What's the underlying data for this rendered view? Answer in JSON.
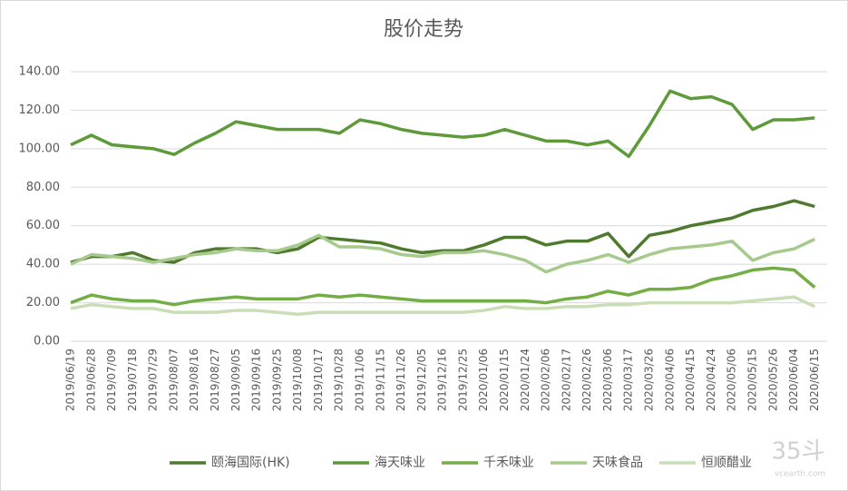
{
  "chart_data": {
    "type": "line",
    "title": "股价走势",
    "categories": [
      "2019/06/19",
      "2019/06/28",
      "2019/07/09",
      "2019/07/18",
      "2019/07/29",
      "2019/08/07",
      "2019/08/16",
      "2019/08/27",
      "2019/09/05",
      "2019/09/16",
      "2019/09/25",
      "2019/10/08",
      "2019/10/17",
      "2019/10/28",
      "2019/11/06",
      "2019/11/15",
      "2019/11/26",
      "2019/12/05",
      "2019/12/16",
      "2019/12/25",
      "2020/01/06",
      "2020/01/15",
      "2020/01/24",
      "2020/02/06",
      "2020/02/17",
      "2020/02/26",
      "2020/03/06",
      "2020/03/17",
      "2020/03/26",
      "2020/04/06",
      "2020/04/15",
      "2020/04/24",
      "2020/05/06",
      "2020/05/15",
      "2020/05/26",
      "2020/06/04",
      "2020/06/15"
    ],
    "series": [
      {
        "name": "颐海国际(HK)",
        "color": "#4e7a2e",
        "values": [
          41,
          44,
          44,
          46,
          42,
          41,
          46,
          48,
          48,
          48,
          46,
          48,
          54,
          53,
          52,
          51,
          48,
          46,
          47,
          47,
          50,
          54,
          54,
          50,
          52,
          52,
          56,
          44,
          55,
          57,
          60,
          62,
          64,
          68,
          70,
          73,
          70
        ]
      },
      {
        "name": "海天味业",
        "color": "#5e9a3a",
        "values": [
          102,
          107,
          102,
          101,
          100,
          97,
          103,
          108,
          114,
          112,
          110,
          110,
          110,
          108,
          115,
          113,
          110,
          108,
          107,
          106,
          107,
          110,
          107,
          104,
          104,
          102,
          104,
          96,
          112,
          130,
          126,
          127,
          123,
          110,
          115,
          115,
          116
        ]
      },
      {
        "name": "千禾味业",
        "color": "#72ad45",
        "values": [
          20,
          24,
          22,
          21,
          21,
          19,
          21,
          22,
          23,
          22,
          22,
          22,
          24,
          23,
          24,
          23,
          22,
          21,
          21,
          21,
          21,
          21,
          21,
          20,
          22,
          23,
          26,
          24,
          27,
          27,
          28,
          32,
          34,
          37,
          38,
          37,
          28
        ]
      },
      {
        "name": "天味食品",
        "color": "#a6c98c",
        "values": [
          40,
          45,
          44,
          43,
          41,
          43,
          45,
          46,
          48,
          47,
          47,
          50,
          55,
          49,
          49,
          48,
          45,
          44,
          46,
          46,
          47,
          45,
          42,
          36,
          40,
          42,
          45,
          41,
          45,
          48,
          49,
          50,
          52,
          42,
          46,
          48,
          53
        ]
      },
      {
        "name": "恒顺醋业",
        "color": "#c9ddb7",
        "values": [
          17,
          19,
          18,
          17,
          17,
          15,
          15,
          15,
          16,
          16,
          15,
          14,
          15,
          15,
          15,
          15,
          15,
          15,
          15,
          15,
          16,
          18,
          17,
          17,
          18,
          18,
          19,
          19,
          20,
          20,
          20,
          20,
          20,
          21,
          22,
          23,
          18
        ]
      }
    ],
    "ylim": [
      0,
      140
    ],
    "yticks": [
      {
        "value": 0,
        "label": "0.00"
      },
      {
        "value": 20,
        "label": "20.00"
      },
      {
        "value": 40,
        "label": "40.00"
      },
      {
        "value": 60,
        "label": "60.00"
      },
      {
        "value": 80,
        "label": "80.00"
      },
      {
        "value": 100,
        "label": "100.00"
      },
      {
        "value": 120,
        "label": "120.00"
      },
      {
        "value": 140,
        "label": "140.00"
      }
    ],
    "grid": true,
    "legend": "bottom",
    "watermark": "35斗",
    "watermark_sub": "vcearth.com"
  }
}
